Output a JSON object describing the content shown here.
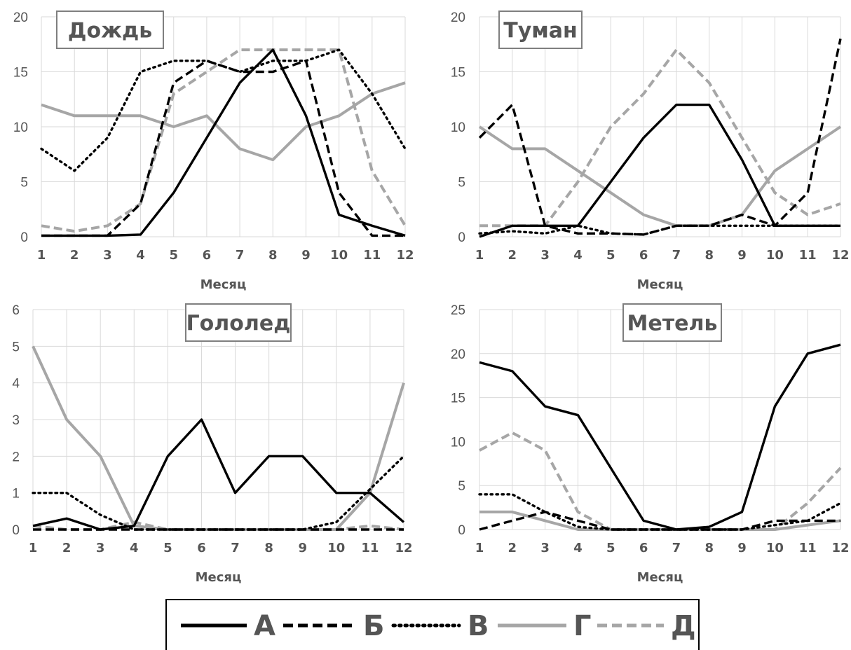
{
  "chart_data": [
    {
      "type": "line",
      "title": "Дождь",
      "xlabel": "Месяц",
      "ylabel": "",
      "x": [
        1,
        2,
        3,
        4,
        5,
        6,
        7,
        8,
        9,
        10,
        11,
        12
      ],
      "ylim": [
        0,
        20
      ],
      "yticks": [
        0,
        5,
        10,
        15,
        20
      ],
      "grid": true,
      "series": [
        {
          "name": "А",
          "values": [
            0.1,
            0.1,
            0.1,
            0.2,
            4,
            9,
            14,
            17,
            11,
            2,
            1,
            0.1
          ]
        },
        {
          "name": "Б",
          "values": [
            0.1,
            0.1,
            0.1,
            3,
            14,
            16,
            15,
            15,
            16,
            4,
            0.1,
            0.1
          ]
        },
        {
          "name": "В",
          "values": [
            8,
            6,
            9,
            15,
            16,
            16,
            15,
            16,
            16,
            17,
            13,
            8
          ]
        },
        {
          "name": "Г",
          "values": [
            12,
            11,
            11,
            11,
            10,
            11,
            8,
            7,
            10,
            11,
            13,
            14
          ]
        },
        {
          "name": "Д",
          "values": [
            1,
            0.5,
            1,
            3,
            13,
            15,
            17,
            17,
            17,
            17,
            6,
            1
          ]
        }
      ]
    },
    {
      "type": "line",
      "title": "Туман",
      "xlabel": "Месяц",
      "ylabel": "",
      "x": [
        1,
        2,
        3,
        4,
        5,
        6,
        7,
        8,
        9,
        10,
        11,
        12
      ],
      "ylim": [
        0,
        20
      ],
      "yticks": [
        0,
        5,
        10,
        15,
        20
      ],
      "grid": true,
      "series": [
        {
          "name": "А",
          "values": [
            0,
            1,
            1,
            1,
            5,
            9,
            12,
            12,
            7,
            1,
            1,
            1
          ]
        },
        {
          "name": "Б",
          "values": [
            9,
            12,
            1,
            0.3,
            0.3,
            0.2,
            1,
            1,
            2,
            1,
            4,
            18
          ]
        },
        {
          "name": "В",
          "values": [
            0.3,
            0.5,
            0.3,
            1,
            0.3,
            0.2,
            1,
            1,
            1,
            1,
            1,
            1
          ]
        },
        {
          "name": "Г",
          "values": [
            10,
            8,
            8,
            6,
            4,
            2,
            1,
            1,
            2,
            6,
            8,
            10
          ]
        },
        {
          "name": "Д",
          "values": [
            1,
            1,
            1,
            5,
            10,
            13,
            17,
            14,
            9,
            4,
            2,
            3
          ]
        }
      ]
    },
    {
      "type": "line",
      "title": "Гололед",
      "xlabel": "Месяц",
      "ylabel": "",
      "x": [
        1,
        2,
        3,
        4,
        5,
        6,
        7,
        8,
        9,
        10,
        11,
        12
      ],
      "ylim": [
        0,
        6
      ],
      "yticks": [
        0,
        1,
        2,
        3,
        4,
        5,
        6
      ],
      "grid": true,
      "series": [
        {
          "name": "А",
          "values": [
            0.1,
            0.3,
            0,
            0.1,
            2,
            3,
            1,
            2,
            2,
            1,
            1,
            0.2
          ]
        },
        {
          "name": "Б",
          "values": [
            0,
            0,
            0,
            0,
            0,
            0,
            0,
            0,
            0,
            0,
            0,
            0
          ]
        },
        {
          "name": "В",
          "values": [
            1,
            1,
            0.4,
            0,
            0,
            0,
            0,
            0,
            0,
            0.2,
            1.1,
            2
          ]
        },
        {
          "name": "Г",
          "values": [
            5,
            3,
            2,
            0.1,
            0,
            0,
            0,
            0,
            0,
            0,
            1,
            4
          ]
        },
        {
          "name": "Д",
          "values": [
            0.1,
            0,
            0,
            0.2,
            0,
            0,
            0,
            0,
            0,
            0,
            0.1,
            0
          ]
        }
      ]
    },
    {
      "type": "line",
      "title": "Метель",
      "xlabel": "Месяц",
      "ylabel": "",
      "x": [
        1,
        2,
        3,
        4,
        5,
        6,
        7,
        8,
        9,
        10,
        11,
        12
      ],
      "ylim": [
        0,
        25
      ],
      "yticks": [
        0,
        5,
        10,
        15,
        20,
        25
      ],
      "grid": true,
      "series": [
        {
          "name": "А",
          "values": [
            19,
            18,
            14,
            13,
            7,
            1,
            0,
            0.3,
            2,
            14,
            20,
            21
          ]
        },
        {
          "name": "Б",
          "values": [
            0,
            1,
            2,
            1,
            0,
            0,
            0,
            0,
            0,
            1,
            1,
            1
          ]
        },
        {
          "name": "В",
          "values": [
            4,
            4,
            2,
            0.3,
            0,
            0,
            0,
            0,
            0,
            0.5,
            1,
            3
          ]
        },
        {
          "name": "Г",
          "values": [
            2,
            2,
            1,
            0,
            0,
            0,
            0,
            0,
            0,
            0,
            0.5,
            1
          ]
        },
        {
          "name": "Д",
          "values": [
            9,
            11,
            9,
            2,
            0,
            0,
            0,
            0,
            0,
            0,
            3,
            7
          ]
        }
      ]
    }
  ],
  "legend": {
    "placement": "bottom-center",
    "items": [
      {
        "name": "А",
        "color": "#000000",
        "style": "solid"
      },
      {
        "name": "Б",
        "color": "#000000",
        "style": "dashed"
      },
      {
        "name": "В",
        "color": "#000000",
        "style": "dotted"
      },
      {
        "name": "Г",
        "color": "#a6a6a6",
        "style": "solid"
      },
      {
        "name": "Д",
        "color": "#a6a6a6",
        "style": "dashed"
      }
    ]
  }
}
